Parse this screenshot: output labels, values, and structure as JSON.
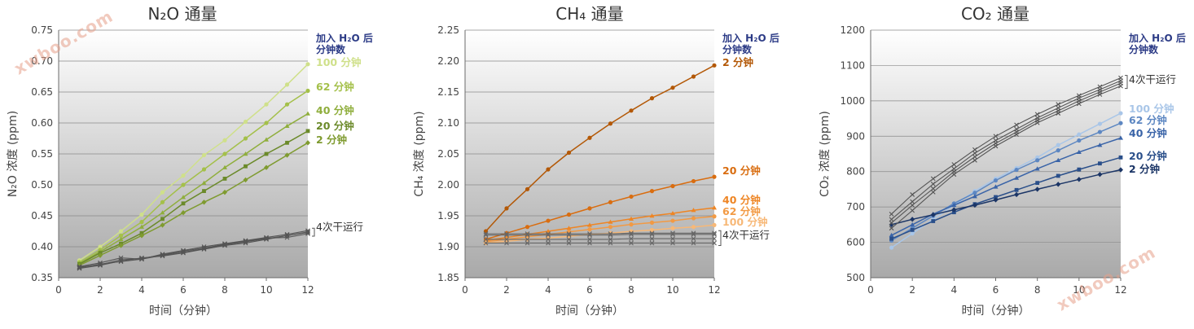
{
  "watermark": "xwboo.com",
  "chart_data": [
    {
      "type": "line",
      "title": "N₂O 通量",
      "xlabel": "时间（分钟）",
      "ylabel": "N₂O 浓度 (ppm)",
      "xlim": [
        0,
        12
      ],
      "ylim": [
        0.35,
        0.75
      ],
      "xticks": [
        0,
        2,
        4,
        6,
        8,
        10,
        12
      ],
      "yticks": [
        0.35,
        0.4,
        0.45,
        0.5,
        0.55,
        0.6,
        0.65,
        0.7,
        0.75
      ],
      "y_decimals": 2,
      "legend_title": [
        "加入 H₂O 后",
        "分钟数"
      ],
      "legend_title_color": "#2c3b86",
      "dry_label": "4次干运行",
      "series": [
        {
          "name": "100 分钟",
          "color": "#cfe08a",
          "marker": "dot",
          "x": [
            1,
            2,
            3,
            4,
            5,
            6,
            7,
            8,
            9,
            10,
            11,
            12
          ],
          "y": [
            0.378,
            0.4,
            0.425,
            0.452,
            0.488,
            0.515,
            0.548,
            0.572,
            0.602,
            0.63,
            0.662,
            0.695
          ]
        },
        {
          "name": "62 分钟",
          "color": "#a4c04a",
          "marker": "dot",
          "x": [
            1,
            2,
            3,
            4,
            5,
            6,
            7,
            8,
            9,
            10,
            11,
            12
          ],
          "y": [
            0.375,
            0.395,
            0.418,
            0.44,
            0.472,
            0.5,
            0.525,
            0.55,
            0.575,
            0.6,
            0.63,
            0.652
          ]
        },
        {
          "name": "40 分钟",
          "color": "#8fae3c",
          "marker": "triangle",
          "x": [
            1,
            2,
            3,
            4,
            5,
            6,
            7,
            8,
            9,
            10,
            11,
            12
          ],
          "y": [
            0.373,
            0.392,
            0.412,
            0.432,
            0.455,
            0.48,
            0.503,
            0.528,
            0.55,
            0.573,
            0.595,
            0.615
          ]
        },
        {
          "name": "20 分钟",
          "color": "#6b8a2a",
          "marker": "square",
          "x": [
            1,
            2,
            3,
            4,
            5,
            6,
            7,
            8,
            9,
            10,
            11,
            12
          ],
          "y": [
            0.372,
            0.39,
            0.405,
            0.422,
            0.445,
            0.47,
            0.49,
            0.51,
            0.53,
            0.55,
            0.568,
            0.587
          ]
        },
        {
          "name": "2 分钟",
          "color": "#7f9b30",
          "marker": "diamond",
          "x": [
            1,
            2,
            3,
            4,
            5,
            6,
            7,
            8,
            9,
            10,
            11,
            12
          ],
          "y": [
            0.37,
            0.386,
            0.402,
            0.418,
            0.435,
            0.455,
            0.472,
            0.488,
            0.508,
            0.528,
            0.548,
            0.568
          ]
        },
        {
          "color": "#555555",
          "marker": "x",
          "dry": true,
          "x": [
            1,
            2,
            3,
            4,
            5,
            6,
            7,
            8,
            9,
            10,
            11,
            12
          ],
          "y": [
            0.366,
            0.372,
            0.376,
            0.38,
            0.386,
            0.391,
            0.397,
            0.403,
            0.408,
            0.413,
            0.418,
            0.423
          ]
        },
        {
          "color": "#555555",
          "marker": "x",
          "dry": true,
          "x": [
            1,
            2,
            3,
            4,
            5,
            6,
            7,
            8,
            9,
            10,
            11,
            12
          ],
          "y": [
            0.368,
            0.374,
            0.382,
            0.38,
            0.388,
            0.394,
            0.4,
            0.405,
            0.41,
            0.415,
            0.42,
            0.426
          ]
        },
        {
          "color": "#555555",
          "marker": "x",
          "dry": true,
          "x": [
            1,
            2,
            3,
            4,
            5,
            6,
            7,
            8,
            9,
            10,
            11,
            12
          ],
          "y": [
            0.367,
            0.371,
            0.379,
            0.381,
            0.387,
            0.393,
            0.398,
            0.404,
            0.409,
            0.414,
            0.415,
            0.421
          ]
        },
        {
          "color": "#555555",
          "marker": "x",
          "dry": true,
          "x": [
            1,
            2,
            3,
            4,
            5,
            6,
            7,
            8,
            9,
            10,
            11,
            12
          ],
          "y": [
            0.365,
            0.37,
            0.377,
            0.382,
            0.385,
            0.39,
            0.396,
            0.402,
            0.406,
            0.412,
            0.418,
            0.424
          ]
        }
      ]
    },
    {
      "type": "line",
      "title": "CH₄ 通量",
      "xlabel": "时间（分钟）",
      "ylabel": "CH₄ 浓度 (ppm)",
      "xlim": [
        0,
        12
      ],
      "ylim": [
        1.85,
        2.25
      ],
      "xticks": [
        0,
        2,
        4,
        6,
        8,
        10,
        12
      ],
      "yticks": [
        1.85,
        1.9,
        1.95,
        2.0,
        2.05,
        2.1,
        2.15,
        2.2,
        2.25
      ],
      "y_decimals": 2,
      "legend_title": [
        "加入 H₂O 后",
        "分钟数"
      ],
      "legend_title_color": "#2c3b86",
      "dry_label": "4次干运行",
      "series": [
        {
          "name": "2 分钟",
          "color": "#b35806",
          "marker": "dot",
          "x": [
            1,
            2,
            3,
            4,
            5,
            6,
            7,
            8,
            9,
            10,
            11,
            12
          ],
          "y": [
            1.925,
            1.962,
            1.993,
            2.025,
            2.052,
            2.076,
            2.099,
            2.12,
            2.14,
            2.157,
            2.175,
            2.193
          ]
        },
        {
          "name": "20 分钟",
          "color": "#d96d10",
          "marker": "dot",
          "x": [
            1,
            2,
            3,
            4,
            5,
            6,
            7,
            8,
            9,
            10,
            11,
            12
          ],
          "y": [
            1.912,
            1.922,
            1.932,
            1.942,
            1.952,
            1.962,
            1.972,
            1.981,
            1.99,
            1.998,
            2.006,
            2.013
          ]
        },
        {
          "name": "40 分钟",
          "color": "#ee8524",
          "marker": "triangle",
          "x": [
            1,
            2,
            3,
            4,
            5,
            6,
            7,
            8,
            9,
            10,
            11,
            12
          ],
          "y": [
            1.91,
            1.915,
            1.92,
            1.925,
            1.93,
            1.935,
            1.94,
            1.945,
            1.95,
            1.954,
            1.959,
            1.963
          ]
        },
        {
          "name": "62 分钟",
          "color": "#f29a44",
          "marker": "dot",
          "x": [
            1,
            2,
            3,
            4,
            5,
            6,
            7,
            8,
            9,
            10,
            11,
            12
          ],
          "y": [
            1.908,
            1.912,
            1.916,
            1.92,
            1.924,
            1.928,
            1.932,
            1.936,
            1.939,
            1.942,
            1.946,
            1.949
          ]
        },
        {
          "name": "100 分钟",
          "color": "#f7b877",
          "marker": "dot",
          "x": [
            1,
            2,
            3,
            4,
            5,
            6,
            7,
            8,
            9,
            10,
            11,
            12
          ],
          "y": [
            1.906,
            1.909,
            1.912,
            1.914,
            1.917,
            1.92,
            1.922,
            1.925,
            1.927,
            1.93,
            1.932,
            1.935
          ]
        },
        {
          "color": "#666666",
          "marker": "x",
          "dry": true,
          "x": [
            1,
            2,
            3,
            4,
            5,
            6,
            7,
            8,
            9,
            10,
            11,
            12
          ],
          "y": [
            1.921,
            1.921,
            1.921,
            1.921,
            1.921,
            1.921,
            1.921,
            1.922,
            1.922,
            1.922,
            1.922,
            1.922
          ]
        },
        {
          "color": "#666666",
          "marker": "x",
          "dry": true,
          "x": [
            1,
            2,
            3,
            4,
            5,
            6,
            7,
            8,
            9,
            10,
            11,
            12
          ],
          "y": [
            1.919,
            1.919,
            1.919,
            1.919,
            1.919,
            1.919,
            1.919,
            1.92,
            1.92,
            1.92,
            1.92,
            1.92
          ]
        },
        {
          "color": "#666666",
          "marker": "x",
          "dry": true,
          "x": [
            1,
            2,
            3,
            4,
            5,
            6,
            7,
            8,
            9,
            10,
            11,
            12
          ],
          "y": [
            1.912,
            1.912,
            1.912,
            1.912,
            1.912,
            1.912,
            1.912,
            1.913,
            1.913,
            1.913,
            1.913,
            1.913
          ]
        },
        {
          "color": "#666666",
          "marker": "x",
          "dry": true,
          "x": [
            1,
            2,
            3,
            4,
            5,
            6,
            7,
            8,
            9,
            10,
            11,
            12
          ],
          "y": [
            1.906,
            1.906,
            1.906,
            1.906,
            1.906,
            1.906,
            1.906,
            1.906,
            1.906,
            1.906,
            1.906,
            1.906
          ]
        }
      ]
    },
    {
      "type": "line",
      "title": "CO₂ 通量",
      "xlabel": "时间（分钟）",
      "ylabel": "CO₂ 浓度 (ppm)",
      "xlim": [
        0,
        12
      ],
      "ylim": [
        500,
        1200
      ],
      "xticks": [
        0,
        2,
        4,
        6,
        8,
        10,
        12
      ],
      "yticks": [
        500,
        600,
        700,
        800,
        900,
        1000,
        1100,
        1200
      ],
      "y_decimals": 0,
      "legend_title": [
        "加入 H₂O 后",
        "分钟数"
      ],
      "legend_title_color": "#2c3b86",
      "dry_label": "4次干运行",
      "series": [
        {
          "name": "100 分钟",
          "color": "#a9c6e8",
          "marker": "dot",
          "x": [
            1,
            2,
            3,
            4,
            5,
            6,
            7,
            8,
            9,
            10,
            11,
            12
          ],
          "y": [
            585,
            625,
            665,
            705,
            745,
            780,
            810,
            840,
            875,
            905,
            935,
            965
          ]
        },
        {
          "name": "62 分钟",
          "color": "#5d87c2",
          "marker": "dot",
          "x": [
            1,
            2,
            3,
            4,
            5,
            6,
            7,
            8,
            9,
            10,
            11,
            12
          ],
          "y": [
            605,
            640,
            675,
            710,
            740,
            775,
            805,
            832,
            860,
            888,
            912,
            937
          ]
        },
        {
          "name": "40 分钟",
          "color": "#3a64a8",
          "marker": "triangle",
          "x": [
            1,
            2,
            3,
            4,
            5,
            6,
            7,
            8,
            9,
            10,
            11,
            12
          ],
          "y": [
            620,
            650,
            680,
            705,
            730,
            757,
            782,
            808,
            832,
            855,
            875,
            895
          ]
        },
        {
          "name": "20 分钟",
          "color": "#2a4f8a",
          "marker": "square",
          "x": [
            1,
            2,
            3,
            4,
            5,
            6,
            7,
            8,
            9,
            10,
            11,
            12
          ],
          "y": [
            610,
            635,
            660,
            685,
            708,
            728,
            748,
            768,
            788,
            806,
            823,
            840
          ]
        },
        {
          "name": "2 分钟",
          "color": "#1b3566",
          "marker": "diamond",
          "x": [
            1,
            2,
            3,
            4,
            5,
            6,
            7,
            8,
            9,
            10,
            11,
            12
          ],
          "y": [
            650,
            665,
            678,
            692,
            705,
            720,
            735,
            750,
            764,
            778,
            792,
            805
          ]
        },
        {
          "color": "#555555",
          "marker": "x",
          "dry": true,
          "x": [
            1,
            2,
            3,
            4,
            5,
            6,
            7,
            8,
            9,
            10,
            11,
            12
          ],
          "y": [
            680,
            735,
            780,
            820,
            862,
            900,
            932,
            962,
            990,
            1015,
            1040,
            1065
          ]
        },
        {
          "color": "#555555",
          "marker": "x",
          "dry": true,
          "x": [
            1,
            2,
            3,
            4,
            5,
            6,
            7,
            8,
            9,
            10,
            11,
            12
          ],
          "y": [
            665,
            715,
            765,
            808,
            852,
            888,
            920,
            952,
            980,
            1008,
            1032,
            1057
          ]
        },
        {
          "color": "#555555",
          "marker": "x",
          "dry": true,
          "x": [
            1,
            2,
            3,
            4,
            5,
            6,
            7,
            8,
            9,
            10,
            11,
            12
          ],
          "y": [
            655,
            705,
            752,
            800,
            842,
            880,
            912,
            945,
            972,
            1000,
            1025,
            1050
          ]
        },
        {
          "color": "#555555",
          "marker": "x",
          "dry": true,
          "x": [
            1,
            2,
            3,
            4,
            5,
            6,
            7,
            8,
            9,
            10,
            11,
            12
          ],
          "y": [
            640,
            690,
            742,
            792,
            832,
            872,
            905,
            938,
            965,
            992,
            1018,
            1042
          ]
        }
      ]
    }
  ]
}
